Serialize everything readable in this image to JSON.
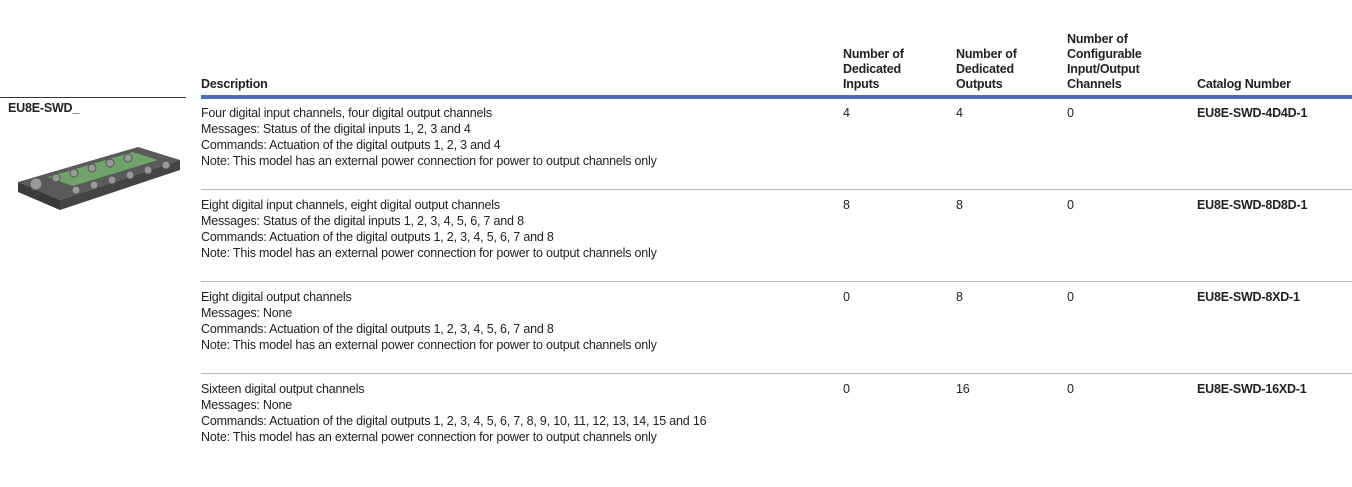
{
  "product": {
    "label": "EU8E-SWD_"
  },
  "table": {
    "headers": [
      [
        "Description"
      ],
      [
        "Number of",
        "Dedicated",
        "Inputs"
      ],
      [
        "Number of",
        "Dedicated",
        "Outputs"
      ],
      [
        "Number of",
        "Configurable",
        "Input/Output",
        "Channels"
      ],
      [
        "Catalog Number"
      ]
    ],
    "rows": [
      {
        "description": [
          "Four digital input channels, four digital output channels",
          "Messages: Status of the digital inputs 1, 2, 3 and 4",
          "Commands: Actuation of the digital outputs 1, 2, 3 and 4",
          "Note: This model has an external power connection for power to output channels only"
        ],
        "inputs": "4",
        "outputs": "4",
        "configurable": "0",
        "catalog": "EU8E-SWD-4D4D-1"
      },
      {
        "description": [
          "Eight digital input channels, eight digital output channels",
          "Messages: Status of the digital inputs 1, 2, 3, 4, 5, 6, 7 and 8",
          "Commands: Actuation of the digital outputs 1, 2, 3, 4, 5, 6, 7 and 8",
          "Note: This model has an external power connection for power to output channels only"
        ],
        "inputs": "8",
        "outputs": "8",
        "configurable": "0",
        "catalog": "EU8E-SWD-8D8D-1"
      },
      {
        "description": [
          "Eight digital output channels",
          "Messages: None",
          "Commands: Actuation of the digital outputs 1, 2, 3, 4, 5, 6, 7 and 8",
          "Note: This model has an external power connection for power to output channels only"
        ],
        "inputs": "0",
        "outputs": "8",
        "configurable": "0",
        "catalog": "EU8E-SWD-8XD-1"
      },
      {
        "description": [
          "Sixteen digital output channels",
          "Messages: None",
          "Commands: Actuation of the digital outputs 1, 2, 3, 4, 5, 6, 7, 8, 9, 10, 11, 12, 13, 14, 15 and 16",
          "Note: This model has an external power connection for power to output channels only"
        ],
        "inputs": "0",
        "outputs": "16",
        "configurable": "0",
        "catalog": "EU8E-SWD-16XD-1"
      }
    ]
  }
}
